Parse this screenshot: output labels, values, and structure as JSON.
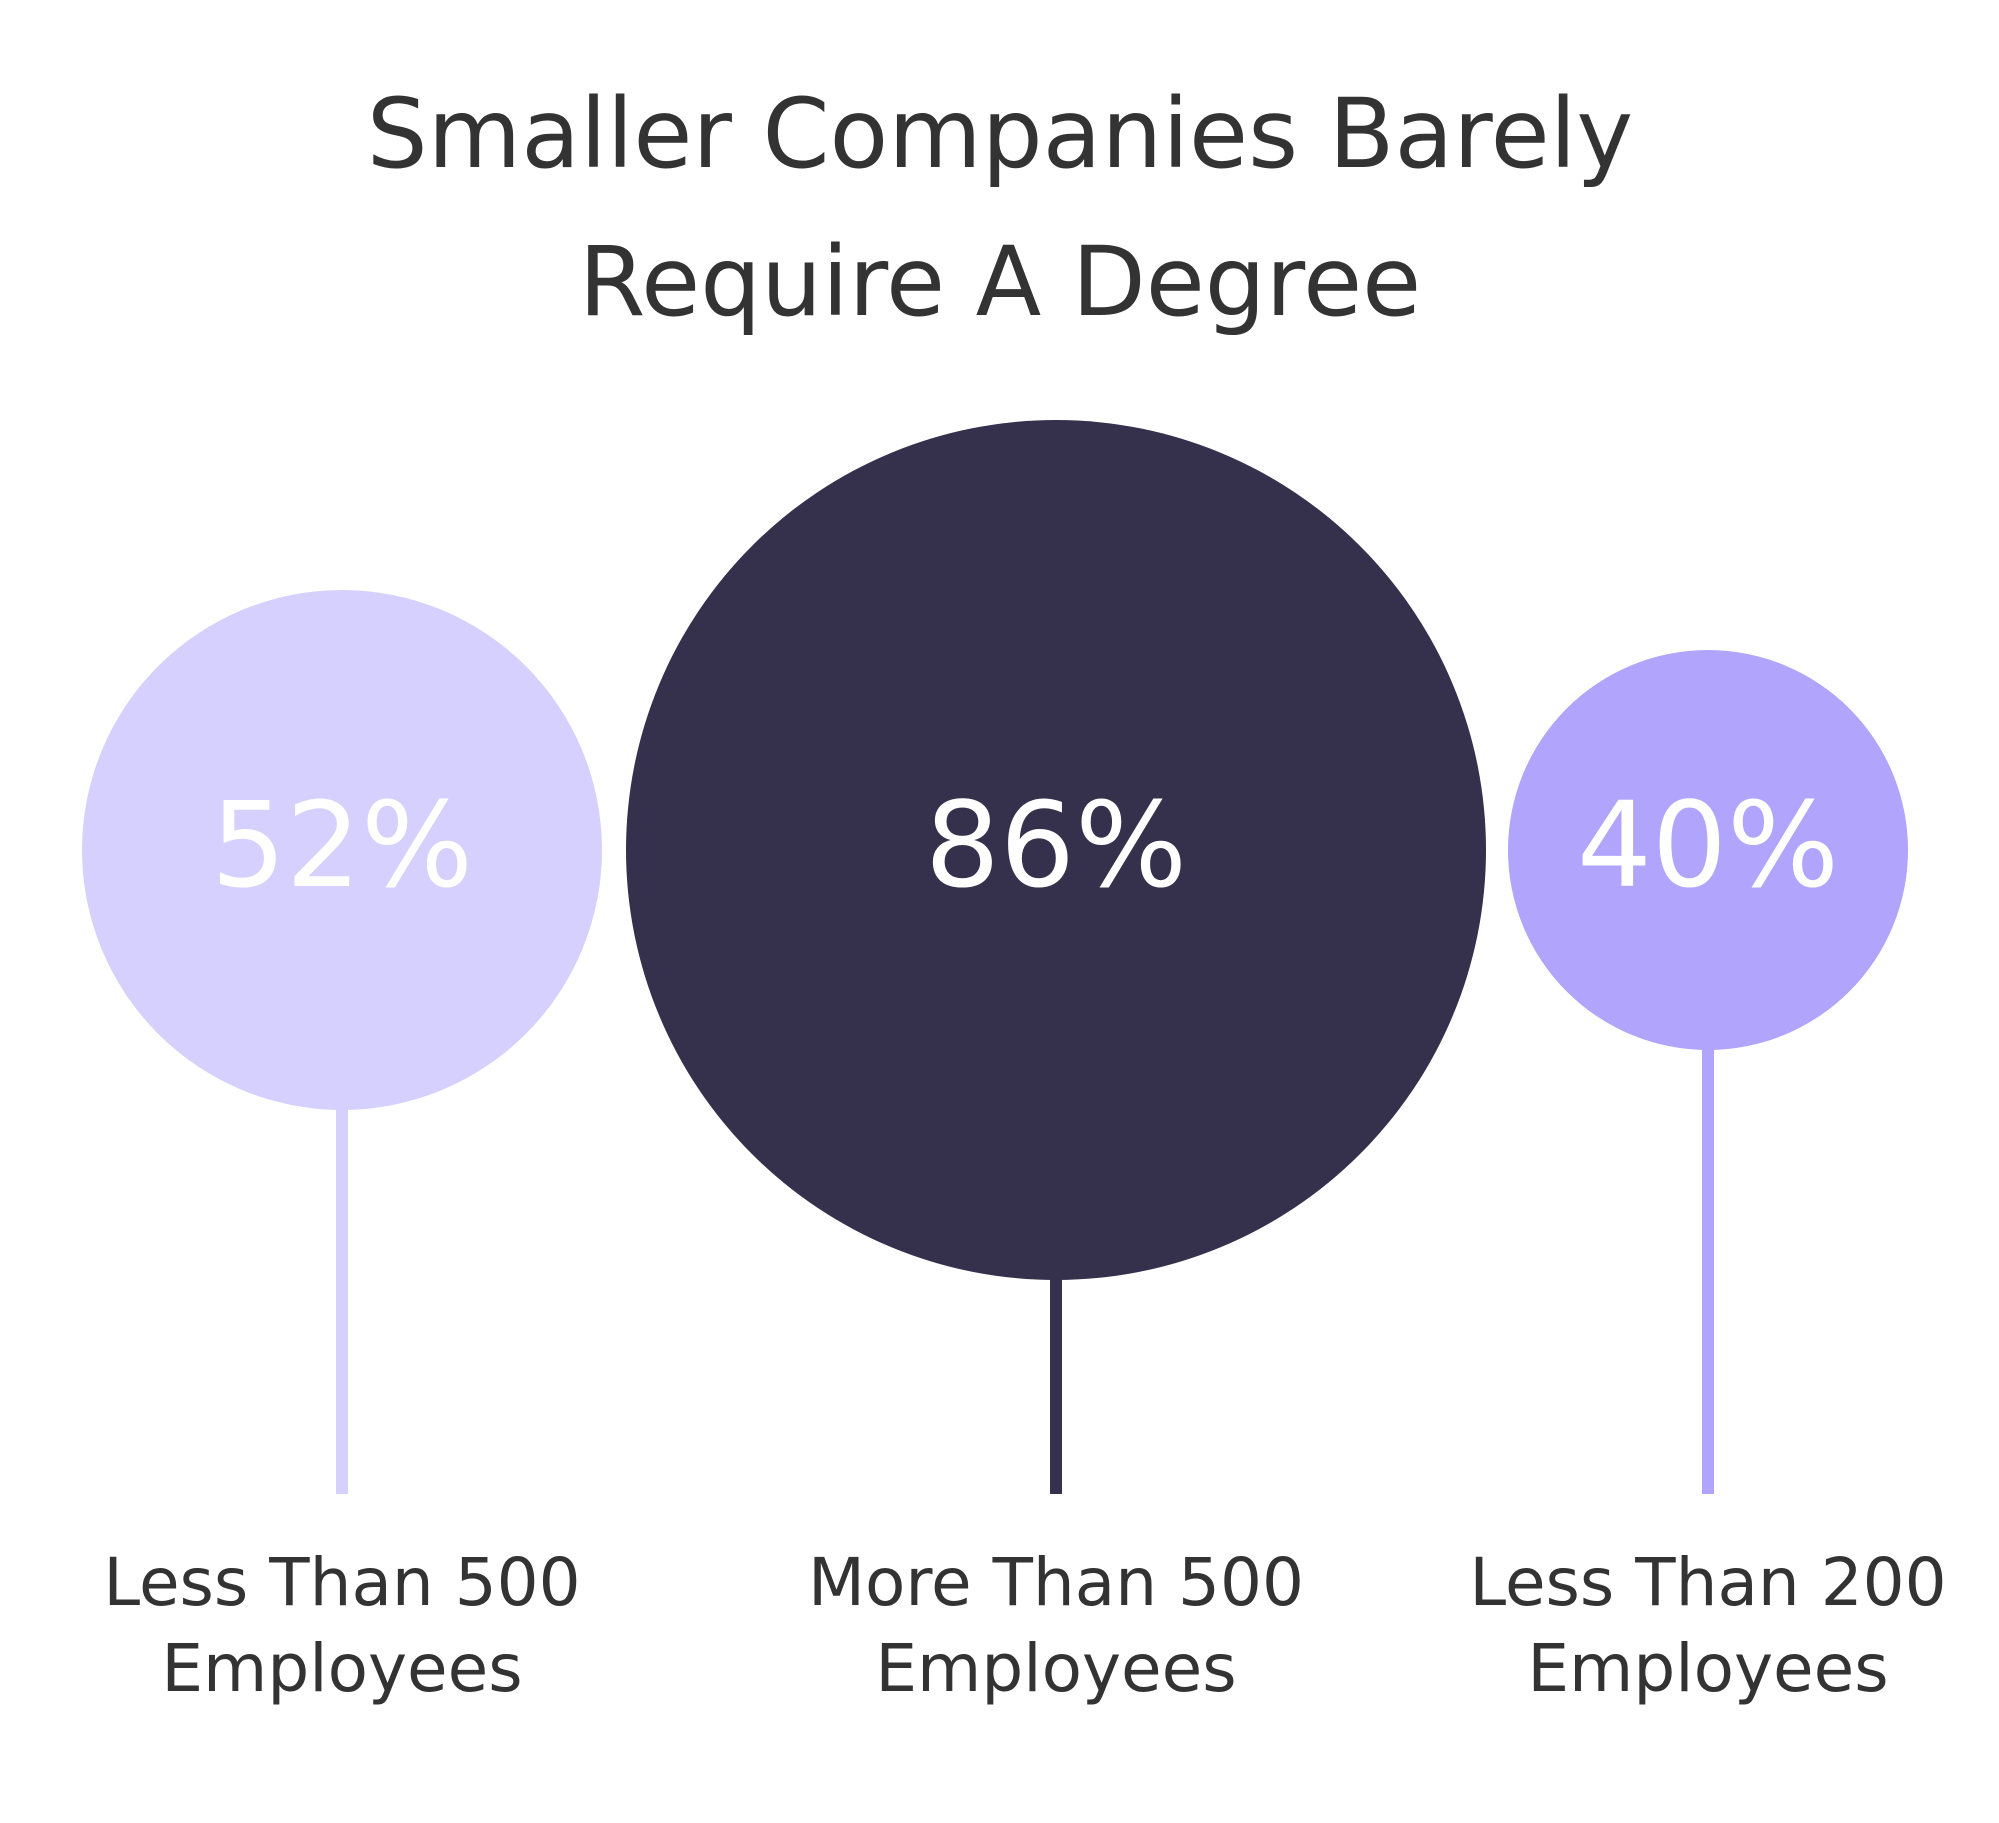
{
  "chart_data": {
    "type": "bubble",
    "title": "Smaller Companies Barely Require A Degree",
    "categories": [
      "Less Than 500 Employees",
      "More Than 500 Employees",
      "Less Than 200 Employees"
    ],
    "values": [
      52,
      86,
      40
    ],
    "value_labels": [
      "52%",
      "86%",
      "40%"
    ],
    "colors": [
      "#d6d0fe",
      "#35304b",
      "#b0a4fc"
    ]
  }
}
